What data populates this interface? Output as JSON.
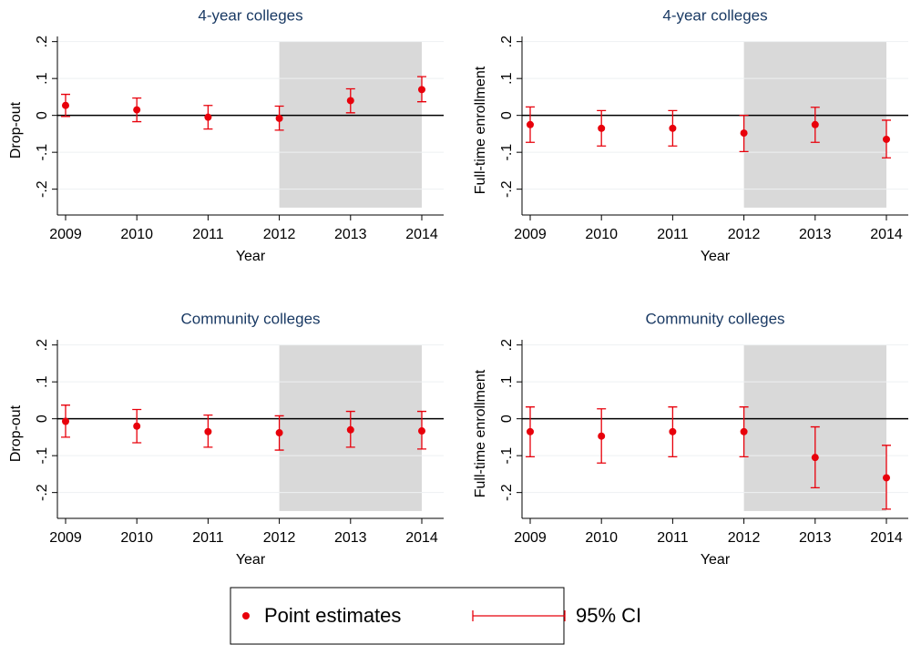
{
  "chart_data": [
    {
      "type": "errorbar",
      "title": "4-year colleges",
      "ylabel": "Drop-out",
      "xlabel": "Year",
      "color": "#e8000b",
      "x": [
        2009,
        2010,
        2011,
        2012,
        2013,
        2014
      ],
      "values": [
        0.027,
        0.015,
        -0.005,
        -0.008,
        0.04,
        0.07
      ],
      "lower": [
        -0.003,
        -0.017,
        -0.037,
        -0.04,
        0.007,
        0.037
      ],
      "upper": [
        0.057,
        0.047,
        0.027,
        0.025,
        0.072,
        0.105
      ],
      "xlim": [
        2008.885,
        2014.307
      ],
      "xticks": [
        2009,
        2010,
        2011,
        2012,
        2013,
        2014
      ],
      "ylim": [
        -0.27,
        0.214
      ],
      "yticks": [
        {
          "value": 0.2,
          "label": ".2"
        },
        {
          "value": 0.1,
          "label": ".1"
        },
        0,
        {
          "value": -0.1,
          "label": "-.1"
        },
        {
          "value": -0.2,
          "label": "-.2"
        }
      ],
      "hline": 0,
      "shade_x": [
        2012,
        2014
      ],
      "shade_y": [
        -0.25,
        0.2
      ],
      "grid": true
    },
    {
      "type": "errorbar",
      "title": "4-year colleges",
      "ylabel": "Full-time enrollment",
      "xlabel": "Year",
      "color": "#e8000b",
      "x": [
        2009,
        2010,
        2011,
        2012,
        2013,
        2014
      ],
      "values": [
        -0.025,
        -0.035,
        -0.035,
        -0.048,
        -0.025,
        -0.065
      ],
      "lower": [
        -0.073,
        -0.083,
        -0.083,
        -0.098,
        -0.073,
        -0.115
      ],
      "upper": [
        0.023,
        0.013,
        0.013,
        0,
        0.022,
        -0.013
      ],
      "xlim": [
        2008.885,
        2014.307
      ],
      "xticks": [
        2009,
        2010,
        2011,
        2012,
        2013,
        2014
      ],
      "ylim": [
        -0.27,
        0.214
      ],
      "yticks": [
        {
          "value": 0.2,
          "label": ".2"
        },
        {
          "value": 0.1,
          "label": ".1"
        },
        0,
        {
          "value": -0.1,
          "label": "-.1"
        },
        {
          "value": -0.2,
          "label": "-.2"
        }
      ],
      "hline": 0,
      "shade_x": [
        2012,
        2014
      ],
      "shade_y": [
        -0.25,
        0.2
      ],
      "grid": true
    },
    {
      "type": "errorbar",
      "title": "Community colleges",
      "ylabel": "Drop-out",
      "xlabel": "Year",
      "color": "#e8000b",
      "x": [
        2009,
        2010,
        2011,
        2012,
        2013,
        2014
      ],
      "values": [
        -0.007,
        -0.02,
        -0.035,
        -0.038,
        -0.03,
        -0.033
      ],
      "lower": [
        -0.05,
        -0.065,
        -0.077,
        -0.085,
        -0.077,
        -0.082
      ],
      "upper": [
        0.037,
        0.025,
        0.01,
        0.008,
        0.02,
        0.02
      ],
      "xlim": [
        2008.885,
        2014.307
      ],
      "xticks": [
        2009,
        2010,
        2011,
        2012,
        2013,
        2014
      ],
      "ylim": [
        -0.27,
        0.214
      ],
      "yticks": [
        {
          "value": 0.2,
          "label": ".2"
        },
        {
          "value": 0.1,
          "label": ".1"
        },
        0,
        {
          "value": -0.1,
          "label": "-.1"
        },
        {
          "value": -0.2,
          "label": "-.2"
        }
      ],
      "hline": 0,
      "shade_x": [
        2012,
        2014
      ],
      "shade_y": [
        -0.25,
        0.2
      ],
      "grid": true
    },
    {
      "type": "errorbar",
      "title": "Community colleges",
      "ylabel": "Full-time enrollment",
      "xlabel": "Year",
      "color": "#e8000b",
      "x": [
        2009,
        2010,
        2011,
        2012,
        2013,
        2014
      ],
      "values": [
        -0.035,
        -0.047,
        -0.035,
        -0.035,
        -0.105,
        -0.16
      ],
      "lower": [
        -0.103,
        -0.12,
        -0.103,
        -0.103,
        -0.187,
        -0.245
      ],
      "upper": [
        0.032,
        0.027,
        0.032,
        0.032,
        -0.022,
        -0.072
      ],
      "xlim": [
        2008.885,
        2014.307
      ],
      "xticks": [
        2009,
        2010,
        2011,
        2012,
        2013,
        2014
      ],
      "ylim": [
        -0.27,
        0.214
      ],
      "yticks": [
        {
          "value": 0.2,
          "label": ".2"
        },
        {
          "value": 0.1,
          "label": ".1"
        },
        0,
        {
          "value": -0.1,
          "label": "-.1"
        },
        {
          "value": -0.2,
          "label": "-.2"
        }
      ],
      "hline": 0,
      "shade_x": [
        2012,
        2014
      ],
      "shade_y": [
        -0.25,
        0.2
      ],
      "grid": true
    }
  ],
  "legend": [
    {
      "name": "Point estimates",
      "color": "#e8000b"
    },
    {
      "name": "95% CI",
      "color": "#e8000b"
    }
  ]
}
